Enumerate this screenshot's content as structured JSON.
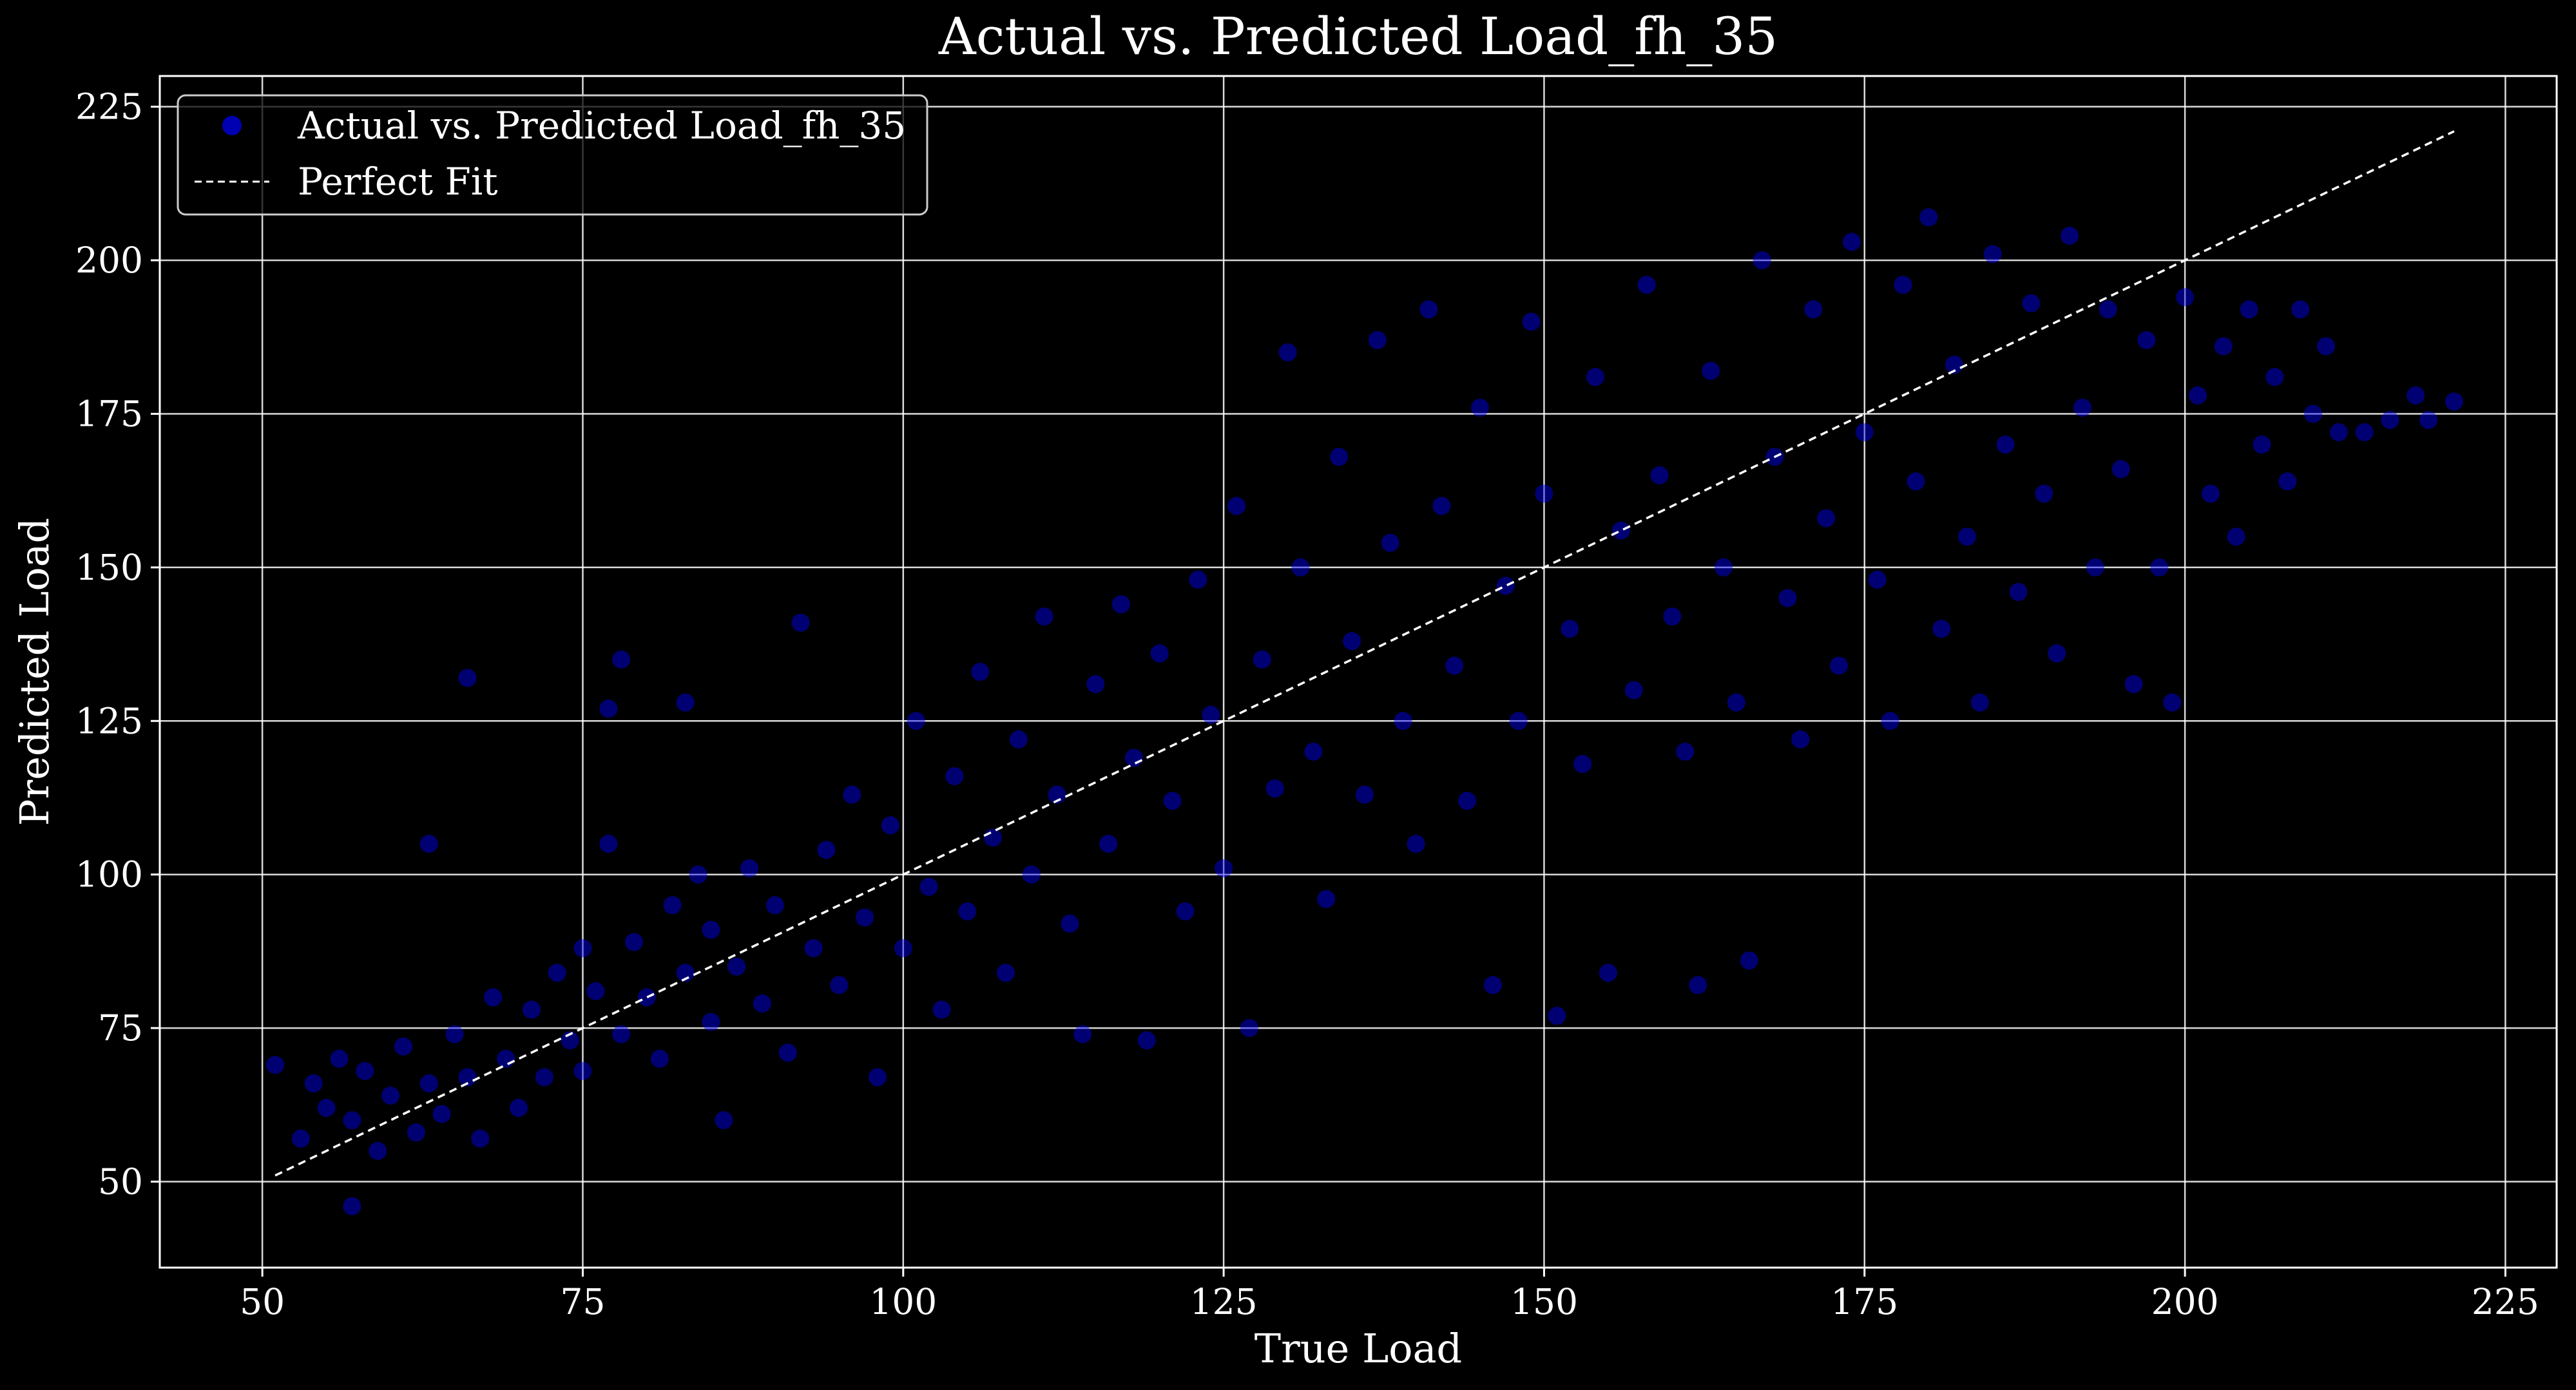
{
  "chart_data": {
    "type": "scatter",
    "title": "Actual vs. Predicted Load_fh_35",
    "xlabel": "True Load",
    "ylabel": "Predicted Load",
    "xlim": [
      42,
      229
    ],
    "ylim": [
      36,
      230
    ],
    "xticks": [
      50,
      75,
      100,
      125,
      150,
      175,
      200,
      225
    ],
    "yticks": [
      50,
      75,
      100,
      125,
      150,
      175,
      200,
      225
    ],
    "grid": true,
    "legend_position": "top-left",
    "background_color": "#000000",
    "text_color": "#ffffff",
    "series": [
      {
        "name": "Actual vs. Predicted Load_fh_35",
        "kind": "scatter",
        "color": "#0000ff",
        "opacity": 0.45,
        "points": [
          [
            51,
            69
          ],
          [
            53,
            57
          ],
          [
            54,
            66
          ],
          [
            55,
            62
          ],
          [
            56,
            70
          ],
          [
            57,
            60
          ],
          [
            57,
            46
          ],
          [
            58,
            68
          ],
          [
            59,
            55
          ],
          [
            60,
            64
          ],
          [
            61,
            72
          ],
          [
            62,
            58
          ],
          [
            63,
            66
          ],
          [
            63,
            105
          ],
          [
            64,
            61
          ],
          [
            65,
            74
          ],
          [
            66,
            67
          ],
          [
            66,
            132
          ],
          [
            67,
            57
          ],
          [
            68,
            80
          ],
          [
            69,
            70
          ],
          [
            70,
            62
          ],
          [
            71,
            78
          ],
          [
            72,
            67
          ],
          [
            73,
            84
          ],
          [
            74,
            73
          ],
          [
            75,
            88
          ],
          [
            75,
            68
          ],
          [
            76,
            81
          ],
          [
            77,
            105
          ],
          [
            77,
            127
          ],
          [
            78,
            135
          ],
          [
            78,
            74
          ],
          [
            79,
            89
          ],
          [
            80,
            80
          ],
          [
            81,
            70
          ],
          [
            82,
            95
          ],
          [
            83,
            84
          ],
          [
            83,
            128
          ],
          [
            84,
            100
          ],
          [
            85,
            76
          ],
          [
            85,
            91
          ],
          [
            86,
            60
          ],
          [
            87,
            85
          ],
          [
            88,
            101
          ],
          [
            89,
            79
          ],
          [
            90,
            95
          ],
          [
            91,
            71
          ],
          [
            92,
            141
          ],
          [
            93,
            88
          ],
          [
            94,
            104
          ],
          [
            95,
            82
          ],
          [
            96,
            113
          ],
          [
            97,
            93
          ],
          [
            98,
            67
          ],
          [
            99,
            108
          ],
          [
            100,
            88
          ],
          [
            101,
            125
          ],
          [
            102,
            98
          ],
          [
            103,
            78
          ],
          [
            104,
            116
          ],
          [
            105,
            94
          ],
          [
            106,
            133
          ],
          [
            107,
            106
          ],
          [
            108,
            84
          ],
          [
            109,
            122
          ],
          [
            110,
            100
          ],
          [
            111,
            142
          ],
          [
            112,
            113
          ],
          [
            113,
            92
          ],
          [
            114,
            74
          ],
          [
            115,
            131
          ],
          [
            116,
            105
          ],
          [
            117,
            144
          ],
          [
            118,
            119
          ],
          [
            119,
            73
          ],
          [
            120,
            136
          ],
          [
            121,
            112
          ],
          [
            122,
            94
          ],
          [
            123,
            148
          ],
          [
            124,
            126
          ],
          [
            125,
            101
          ],
          [
            126,
            160
          ],
          [
            127,
            75
          ],
          [
            128,
            135
          ],
          [
            129,
            114
          ],
          [
            130,
            185
          ],
          [
            131,
            150
          ],
          [
            132,
            120
          ],
          [
            133,
            96
          ],
          [
            134,
            168
          ],
          [
            135,
            138
          ],
          [
            136,
            113
          ],
          [
            137,
            187
          ],
          [
            138,
            154
          ],
          [
            139,
            125
          ],
          [
            140,
            105
          ],
          [
            141,
            192
          ],
          [
            142,
            160
          ],
          [
            143,
            134
          ],
          [
            144,
            112
          ],
          [
            145,
            176
          ],
          [
            146,
            82
          ],
          [
            147,
            147
          ],
          [
            148,
            125
          ],
          [
            149,
            190
          ],
          [
            150,
            162
          ],
          [
            151,
            77
          ],
          [
            152,
            140
          ],
          [
            153,
            118
          ],
          [
            154,
            181
          ],
          [
            155,
            84
          ],
          [
            156,
            156
          ],
          [
            157,
            130
          ],
          [
            158,
            196
          ],
          [
            159,
            165
          ],
          [
            160,
            142
          ],
          [
            161,
            120
          ],
          [
            162,
            82
          ],
          [
            163,
            182
          ],
          [
            164,
            150
          ],
          [
            165,
            128
          ],
          [
            166,
            86
          ],
          [
            167,
            200
          ],
          [
            168,
            168
          ],
          [
            169,
            145
          ],
          [
            170,
            122
          ],
          [
            171,
            192
          ],
          [
            172,
            158
          ],
          [
            173,
            134
          ],
          [
            174,
            203
          ],
          [
            175,
            172
          ],
          [
            176,
            148
          ],
          [
            177,
            125
          ],
          [
            178,
            196
          ],
          [
            179,
            164
          ],
          [
            180,
            207
          ],
          [
            181,
            140
          ],
          [
            182,
            183
          ],
          [
            183,
            155
          ],
          [
            184,
            128
          ],
          [
            185,
            201
          ],
          [
            186,
            170
          ],
          [
            187,
            146
          ],
          [
            188,
            193
          ],
          [
            189,
            162
          ],
          [
            190,
            136
          ],
          [
            191,
            204
          ],
          [
            192,
            176
          ],
          [
            193,
            150
          ],
          [
            194,
            192
          ],
          [
            195,
            166
          ],
          [
            196,
            131
          ],
          [
            197,
            187
          ],
          [
            198,
            150
          ],
          [
            199,
            128
          ],
          [
            200,
            194
          ],
          [
            201,
            178
          ],
          [
            202,
            162
          ],
          [
            203,
            186
          ],
          [
            204,
            155
          ],
          [
            205,
            192
          ],
          [
            206,
            170
          ],
          [
            207,
            181
          ],
          [
            208,
            164
          ],
          [
            209,
            192
          ],
          [
            210,
            175
          ],
          [
            211,
            186
          ],
          [
            212,
            172
          ],
          [
            214,
            172
          ],
          [
            216,
            174
          ],
          [
            218,
            178
          ],
          [
            219,
            174
          ],
          [
            221,
            177
          ]
        ]
      },
      {
        "name": "Perfect Fit",
        "kind": "line",
        "style": "dashed",
        "color": "#ffffff",
        "x": [
          51,
          221
        ],
        "y": [
          51,
          221
        ]
      }
    ]
  }
}
